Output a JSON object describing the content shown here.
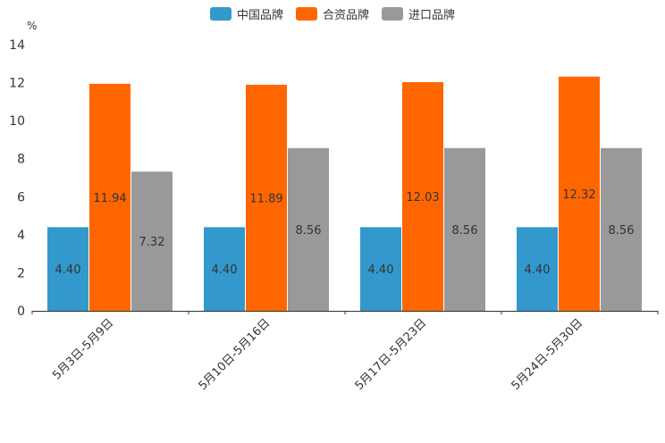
{
  "chart_data": {
    "type": "bar",
    "title": "",
    "ylabel": "%",
    "xlabel": "",
    "ylim": [
      0,
      14
    ],
    "yticks": [
      0,
      2,
      4,
      6,
      8,
      10,
      12,
      14
    ],
    "categories": [
      "5月3日-5月9日",
      "5月10日-5月16日",
      "5月17日-5月23日",
      "5月24日-5月30日"
    ],
    "series": [
      {
        "name": "中国品牌",
        "color": "#3399cc",
        "values": [
          4.4,
          4.4,
          4.4,
          4.4
        ],
        "labels": [
          "4.40",
          "4.40",
          "4.40",
          "4.40"
        ]
      },
      {
        "name": "合资品牌",
        "color": "#ff6600",
        "values": [
          11.94,
          11.89,
          12.03,
          12.32
        ],
        "labels": [
          "11.94",
          "11.89",
          "12.03",
          "12.32"
        ]
      },
      {
        "name": "进口品牌",
        "color": "#999999",
        "values": [
          7.32,
          8.56,
          8.56,
          8.56
        ],
        "labels": [
          "7.32",
          "8.56",
          "8.56",
          "8.56"
        ]
      }
    ],
    "legend_position": "top-center",
    "grid": false
  }
}
